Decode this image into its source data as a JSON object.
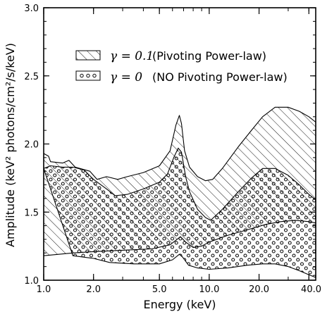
{
  "chart_data": {
    "type": "area",
    "xlabel": "Energy (keV)",
    "ylabel": "Amplitude (keV² photons/cm²/s/keV)",
    "x_scale": "log",
    "xlim": [
      1.0,
      44.0
    ],
    "ylim": [
      1.0,
      3.0
    ],
    "x_ticks": [
      1.0,
      2.0,
      5.0,
      10.0,
      20.0,
      40.0
    ],
    "x_tick_labels": [
      "1.0",
      "2.0",
      "5.0",
      "10.0",
      "20.0",
      "40.0"
    ],
    "y_ticks": [
      1.0,
      1.5,
      2.0,
      2.5,
      3.0
    ],
    "y_tick_labels": [
      "1.0",
      "1.5",
      "2.0",
      "2.5",
      "3.0"
    ],
    "legend_position": "upper-left",
    "series": [
      {
        "name": "(Pivoting Power-law)",
        "symbol": "γ = 0.1",
        "fill": "diagonal-hatch",
        "upper": [
          [
            1.0,
            1.93
          ],
          [
            1.07,
            1.91
          ],
          [
            1.1,
            1.87
          ],
          [
            1.3,
            1.86
          ],
          [
            1.42,
            1.88
          ],
          [
            1.55,
            1.83
          ],
          [
            1.9,
            1.8
          ],
          [
            2.1,
            1.74
          ],
          [
            2.4,
            1.76
          ],
          [
            2.8,
            1.74
          ],
          [
            3.2,
            1.76
          ],
          [
            4.0,
            1.79
          ],
          [
            5.0,
            1.84
          ],
          [
            5.8,
            1.95
          ],
          [
            6.3,
            2.14
          ],
          [
            6.6,
            2.21
          ],
          [
            6.8,
            2.15
          ],
          [
            7.1,
            1.95
          ],
          [
            7.6,
            1.83
          ],
          [
            8.5,
            1.76
          ],
          [
            9.5,
            1.73
          ],
          [
            10.5,
            1.74
          ],
          [
            12.0,
            1.82
          ],
          [
            15.0,
            1.98
          ],
          [
            18.0,
            2.1
          ],
          [
            21.0,
            2.2
          ],
          [
            25.0,
            2.27
          ],
          [
            30.0,
            2.27
          ],
          [
            35.0,
            2.24
          ],
          [
            40.0,
            2.2
          ],
          [
            44.0,
            2.16
          ]
        ],
        "lower": [
          [
            1.0,
            1.18
          ],
          [
            1.5,
            1.2
          ],
          [
            2.0,
            1.21
          ],
          [
            3.0,
            1.22
          ],
          [
            4.5,
            1.23
          ],
          [
            5.8,
            1.26
          ],
          [
            6.4,
            1.3
          ],
          [
            6.7,
            1.32
          ],
          [
            7.2,
            1.28
          ],
          [
            8.0,
            1.24
          ],
          [
            9.0,
            1.25
          ],
          [
            10.0,
            1.28
          ],
          [
            13.0,
            1.33
          ],
          [
            17.0,
            1.37
          ],
          [
            22.0,
            1.41
          ],
          [
            27.0,
            1.43
          ],
          [
            33.0,
            1.44
          ],
          [
            40.0,
            1.43
          ],
          [
            44.0,
            1.42
          ]
        ]
      },
      {
        "name": "(NO Pivoting Power-law)",
        "symbol": "γ = 0",
        "fill": "open-circles",
        "upper": [
          [
            1.0,
            1.82
          ],
          [
            1.1,
            1.84
          ],
          [
            1.3,
            1.83
          ],
          [
            1.5,
            1.83
          ],
          [
            1.75,
            1.81
          ],
          [
            2.0,
            1.74
          ],
          [
            2.4,
            1.67
          ],
          [
            2.7,
            1.62
          ],
          [
            3.2,
            1.63
          ],
          [
            4.0,
            1.67
          ],
          [
            5.0,
            1.72
          ],
          [
            5.6,
            1.78
          ],
          [
            6.1,
            1.9
          ],
          [
            6.5,
            1.97
          ],
          [
            6.8,
            1.94
          ],
          [
            7.2,
            1.76
          ],
          [
            7.6,
            1.65
          ],
          [
            8.5,
            1.52
          ],
          [
            9.5,
            1.46
          ],
          [
            10.2,
            1.44
          ],
          [
            12.0,
            1.52
          ],
          [
            15.0,
            1.65
          ],
          [
            18.0,
            1.75
          ],
          [
            21.0,
            1.82
          ],
          [
            25.0,
            1.82
          ],
          [
            30.0,
            1.77
          ],
          [
            35.0,
            1.7
          ],
          [
            40.0,
            1.63
          ],
          [
            44.0,
            1.59
          ]
        ],
        "lower": [
          [
            1.5,
            1.18
          ],
          [
            2.0,
            1.16
          ],
          [
            2.5,
            1.13
          ],
          [
            3.5,
            1.12
          ],
          [
            5.0,
            1.12
          ],
          [
            6.0,
            1.15
          ],
          [
            6.6,
            1.19
          ],
          [
            6.9,
            1.17
          ],
          [
            7.5,
            1.11
          ],
          [
            8.5,
            1.09
          ],
          [
            10.0,
            1.08
          ],
          [
            13.0,
            1.09
          ],
          [
            17.0,
            1.11
          ],
          [
            21.0,
            1.12
          ],
          [
            25.0,
            1.12
          ],
          [
            30.0,
            1.1
          ],
          [
            35.0,
            1.07
          ],
          [
            40.0,
            1.04
          ],
          [
            44.0,
            1.02
          ]
        ]
      }
    ]
  }
}
